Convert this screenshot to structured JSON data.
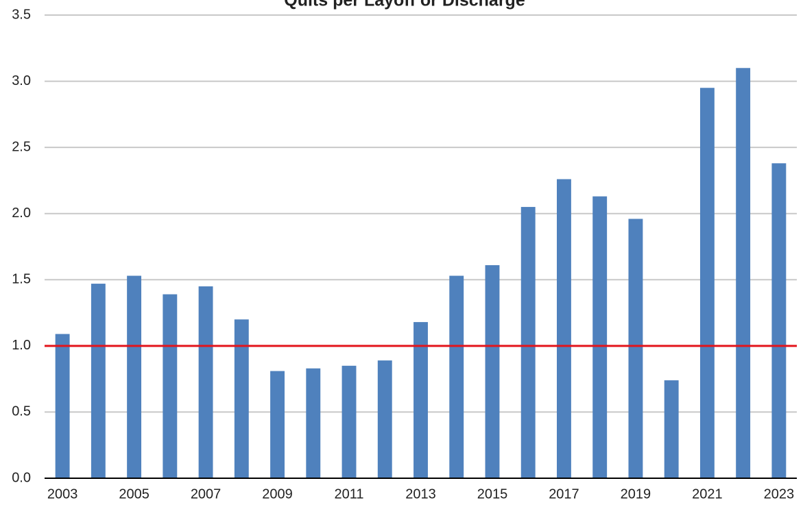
{
  "chart_data": {
    "type": "bar",
    "title": "Quits per Layoff or Discharge",
    "categories": [
      "2003",
      null,
      "2005",
      null,
      "2007",
      null,
      "2009",
      null,
      "2011",
      null,
      "2013",
      null,
      "2015",
      null,
      "2017",
      null,
      "2019",
      null,
      "2021",
      null,
      "2023"
    ],
    "values": [
      1.09,
      1.47,
      1.53,
      1.39,
      1.45,
      1.2,
      0.81,
      0.83,
      0.85,
      0.89,
      1.18,
      1.53,
      1.61,
      2.05,
      2.26,
      2.13,
      1.96,
      0.74,
      2.95,
      3.1,
      2.38
    ],
    "color": "#4f81bd",
    "ylim": [
      0,
      3.5
    ],
    "yticks": [
      {
        "value": 0,
        "label": "0.0"
      },
      0.5,
      {
        "value": 1,
        "label": "1.0"
      },
      1.5,
      {
        "value": 2,
        "label": "2.0"
      },
      2.5,
      {
        "value": 3,
        "label": "3.0"
      },
      3.5
    ],
    "grid": true,
    "reference_line": {
      "value": 1,
      "color": "#e3141b"
    }
  }
}
